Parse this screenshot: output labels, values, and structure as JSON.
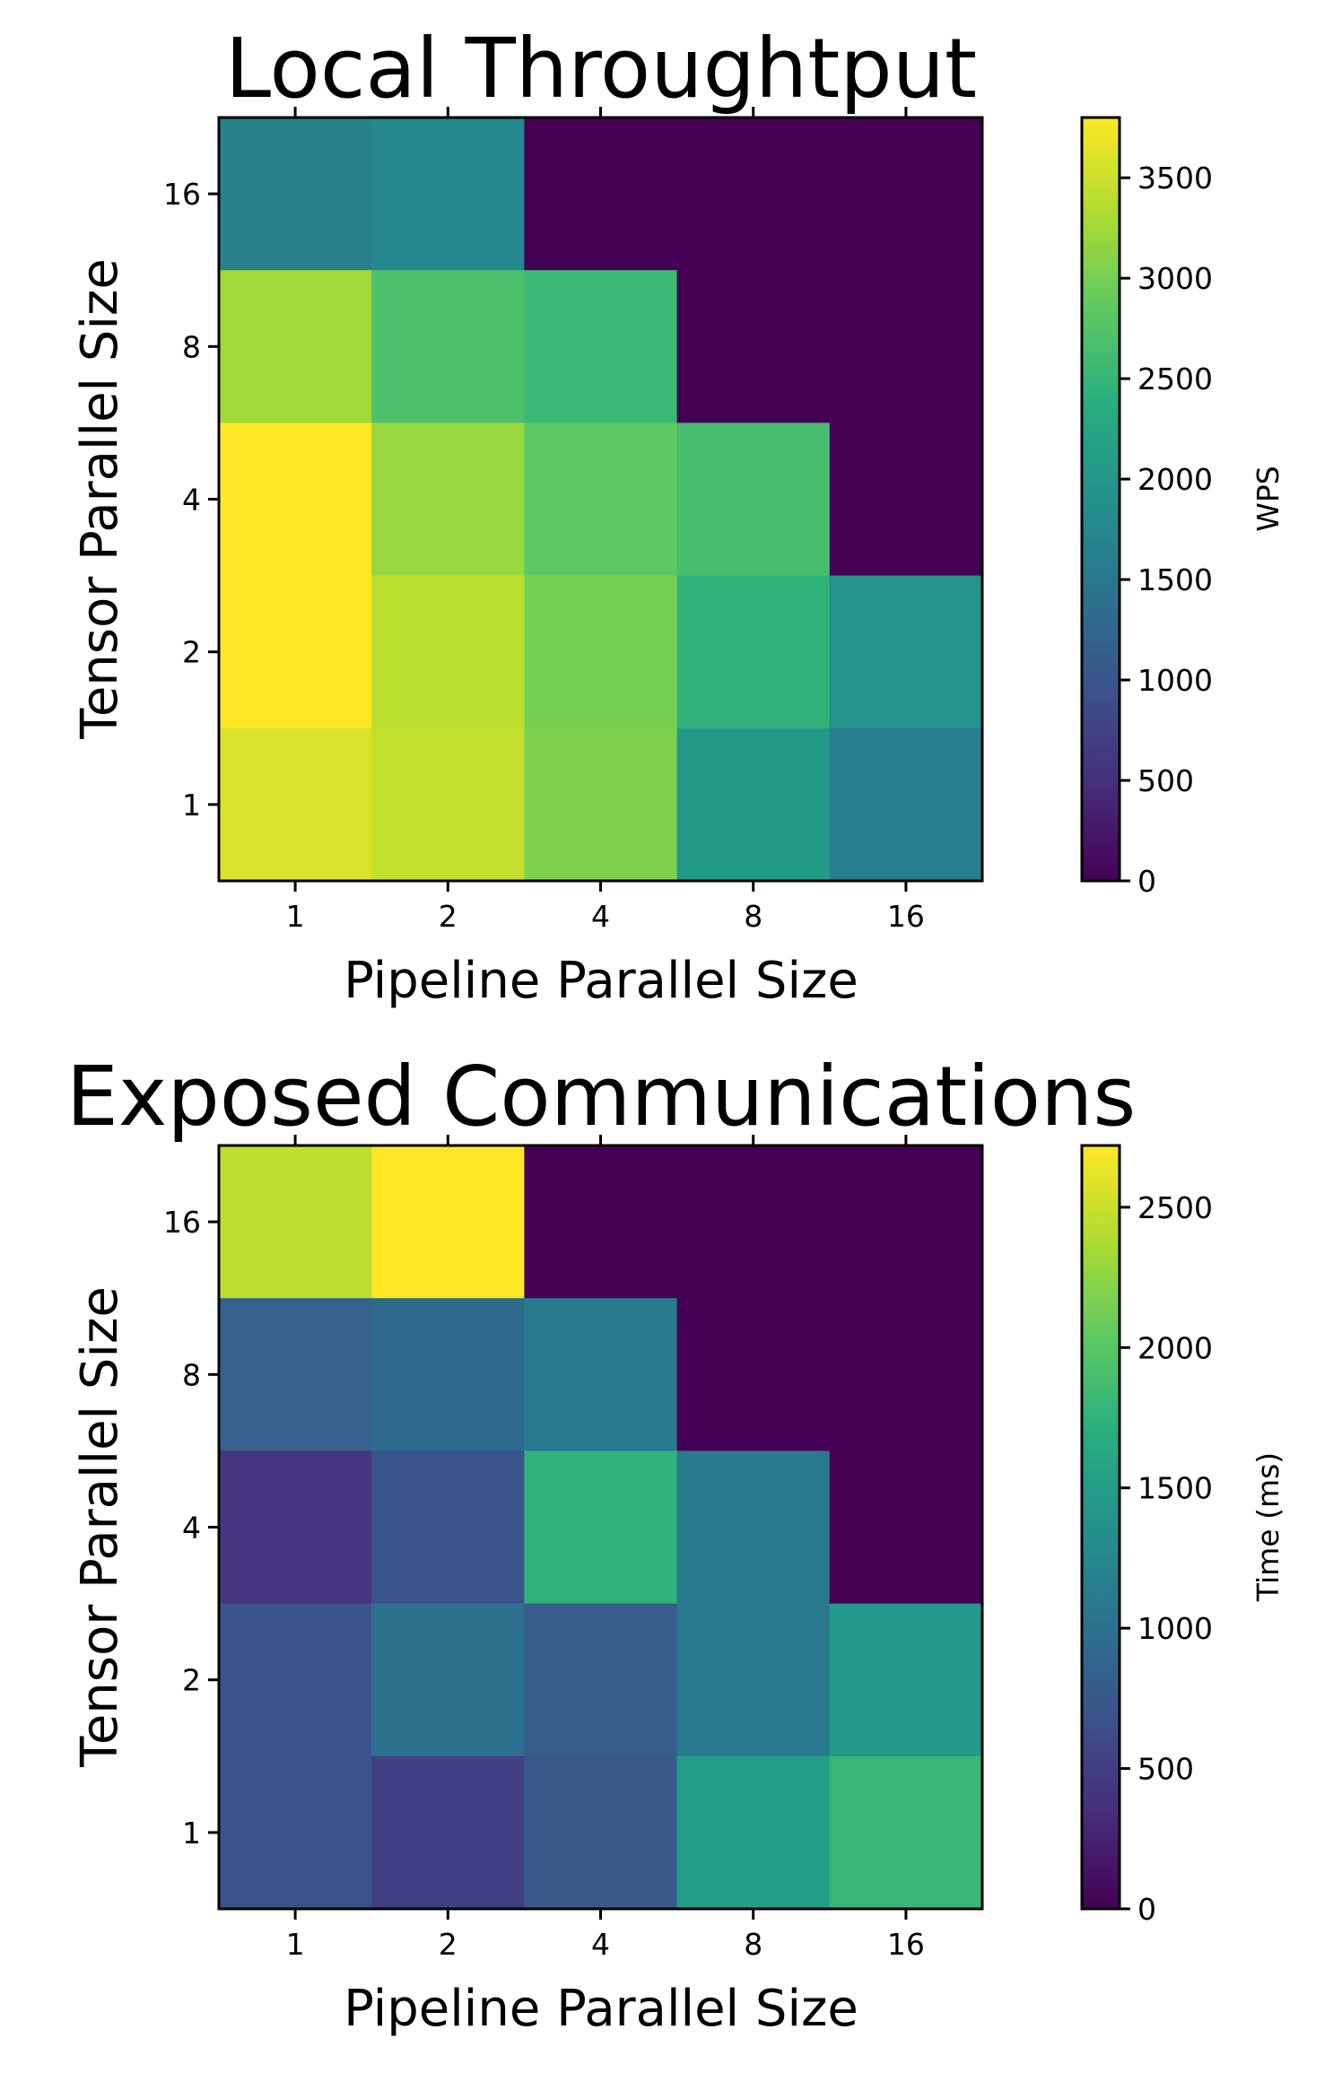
{
  "chart_data": [
    {
      "type": "heatmap",
      "title": "Local Throughtput",
      "xlabel": "Pipeline Parallel Size",
      "ylabel": "Tensor Parallel Size",
      "x_categories": [
        "1",
        "2",
        "4",
        "8",
        "16"
      ],
      "y_categories": [
        "16",
        "8",
        "4",
        "2",
        "1"
      ],
      "values": [
        [
          1650,
          1750,
          0,
          0,
          0
        ],
        [
          3250,
          2700,
          2550,
          0,
          0
        ],
        [
          3800,
          3200,
          2850,
          2650,
          0
        ],
        [
          3800,
          3400,
          3000,
          2450,
          1950
        ],
        [
          3600,
          3450,
          3050,
          2050,
          1600
        ]
      ],
      "colorbar": {
        "label": "WPS",
        "range": [
          0,
          3800
        ],
        "ticks": [
          0,
          500,
          1000,
          1500,
          2000,
          2500,
          3000,
          3500
        ]
      },
      "colormap": "viridis"
    },
    {
      "type": "heatmap",
      "title": "Exposed Communications",
      "xlabel": "Pipeline Parallel Size",
      "ylabel": "Tensor Parallel Size",
      "x_categories": [
        "1",
        "2",
        "4",
        "8",
        "16"
      ],
      "y_categories": [
        "16",
        "8",
        "4",
        "2",
        "1"
      ],
      "values": [
        [
          2450,
          2720,
          0,
          0,
          0
        ],
        [
          850,
          950,
          1100,
          0,
          0
        ],
        [
          400,
          700,
          1750,
          1100,
          0
        ],
        [
          700,
          1000,
          800,
          1100,
          1450
        ],
        [
          700,
          500,
          750,
          1500,
          1800
        ]
      ],
      "colorbar": {
        "label": "Time (ms)",
        "range": [
          0,
          2720
        ],
        "ticks": [
          0,
          500,
          1000,
          1500,
          2000,
          2500
        ]
      },
      "colormap": "viridis"
    }
  ]
}
